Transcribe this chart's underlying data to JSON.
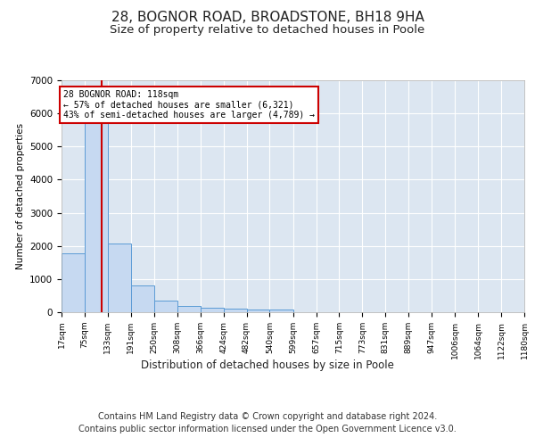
{
  "title_line1": "28, BOGNOR ROAD, BROADSTONE, BH18 9HA",
  "title_line2": "Size of property relative to detached houses in Poole",
  "xlabel": "Distribution of detached houses by size in Poole",
  "ylabel": "Number of detached properties",
  "bar_color": "#c6d9f1",
  "bar_edge_color": "#5b9bd5",
  "background_color": "#dce6f1",
  "grid_color": "#ffffff",
  "annotation_box_color": "#cc0000",
  "annotation_text": "28 BOGNOR ROAD: 118sqm\n← 57% of detached houses are smaller (6,321)\n43% of semi-detached houses are larger (4,789) →",
  "property_line_x": 118,
  "property_line_color": "#cc0000",
  "footnote_line1": "Contains HM Land Registry data © Crown copyright and database right 2024.",
  "footnote_line2": "Contains public sector information licensed under the Open Government Licence v3.0.",
  "bin_edges": [
    17,
    75,
    133,
    191,
    250,
    308,
    366,
    424,
    482,
    540,
    599,
    657,
    715,
    773,
    831,
    889,
    947,
    1006,
    1064,
    1122,
    1180
  ],
  "bar_heights": [
    1780,
    5780,
    2060,
    820,
    340,
    185,
    130,
    95,
    90,
    75,
    0,
    0,
    0,
    0,
    0,
    0,
    0,
    0,
    0,
    0
  ],
  "ylim": [
    0,
    7000
  ],
  "yticks": [
    0,
    1000,
    2000,
    3000,
    4000,
    5000,
    6000,
    7000
  ],
  "title_fontsize": 11,
  "subtitle_fontsize": 9.5,
  "footnote_fontsize": 7
}
